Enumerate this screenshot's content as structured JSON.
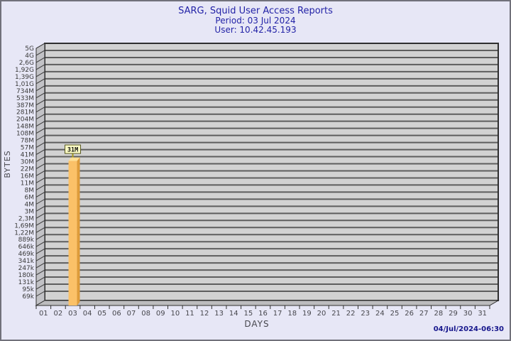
{
  "header": {
    "title": "SARG, Squid User Access Reports",
    "period": "Period: 03 Jul 2024",
    "user": "User: 10.42.45.193"
  },
  "footer": {
    "timestamp": "04/Jul/2024-06:30"
  },
  "chart_data": {
    "type": "bar",
    "title": "SARG, Squid User Access Reports",
    "subtitle": [
      "Period: 03 Jul 2024",
      "User: 10.42.45.193"
    ],
    "xlabel": "DAYS",
    "ylabel": "BYTES",
    "y_scale": "log",
    "y_tick_labels": [
      "5G",
      "4G",
      "2,6G",
      "1,92G",
      "1,39G",
      "1,01G",
      "734M",
      "533M",
      "387M",
      "281M",
      "204M",
      "148M",
      "108M",
      "78M",
      "57M",
      "41M",
      "30M",
      "22M",
      "16M",
      "11M",
      "8M",
      "6M",
      "4M",
      "3M",
      "2,3M",
      "1,69M",
      "1,22M",
      "889k",
      "646k",
      "469k",
      "341k",
      "247k",
      "180k",
      "131k",
      "95k",
      "69k"
    ],
    "x_tick_labels": [
      "01",
      "02",
      "03",
      "04",
      "05",
      "06",
      "07",
      "08",
      "09",
      "10",
      "11",
      "12",
      "13",
      "14",
      "15",
      "16",
      "17",
      "18",
      "19",
      "20",
      "21",
      "22",
      "23",
      "24",
      "25",
      "26",
      "27",
      "28",
      "29",
      "30",
      "31"
    ],
    "bars": [
      {
        "category": "03",
        "label": "31M",
        "tick_position": 15.9
      }
    ],
    "legend": "none",
    "grid": "horizontal",
    "colors": {
      "bar_front": "#fbc168",
      "bar_side": "#dd9b3a",
      "bar_top": "#ffe095",
      "plot_bg": "#d2d2d2",
      "grid_line": "#5e5e5e",
      "wall": "#c2c2c6",
      "floor": "#bcbcbe",
      "edge": "#2f2f2f",
      "annotation_bg": "#ffffc6",
      "annotation_border": "#55551e",
      "annotation_stem": "#a89c20",
      "tick_text": "#3a3a3a"
    }
  }
}
